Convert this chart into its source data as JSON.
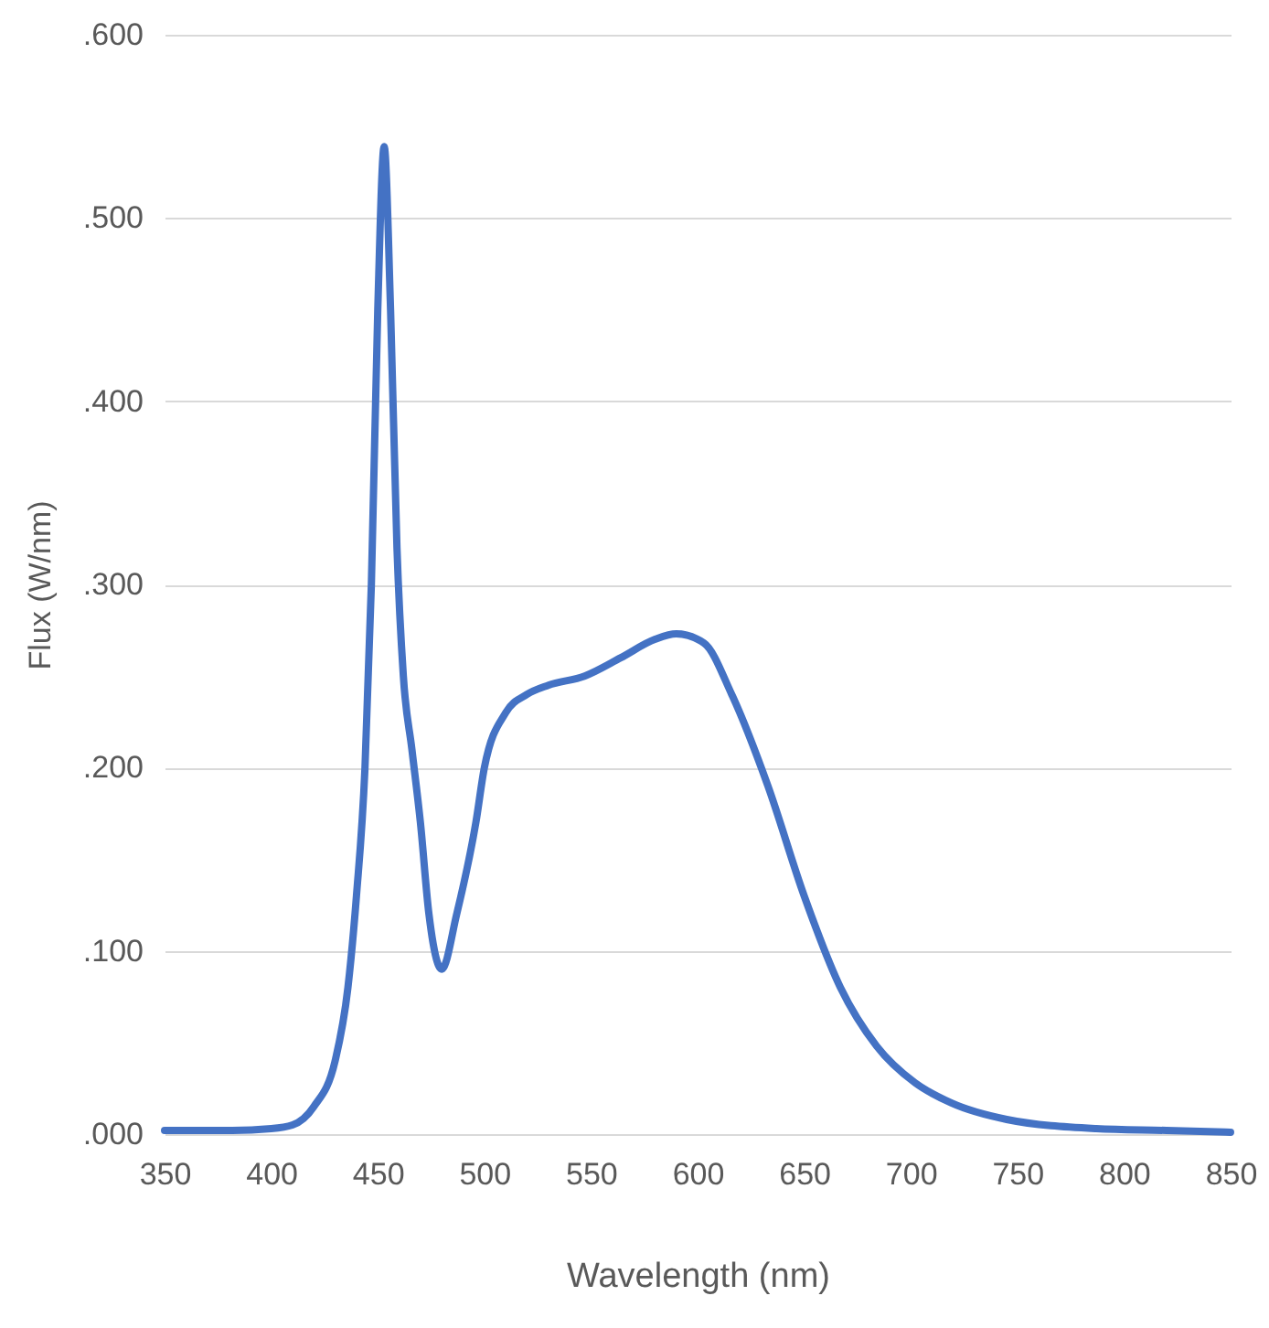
{
  "chart_data": {
    "type": "line",
    "xlabel": "Wavelength (nm)",
    "ylabel": "Flux (W/nm)",
    "x": [
      350,
      380,
      400,
      410,
      420,
      430,
      436,
      440,
      444,
      447,
      450,
      453,
      456,
      459,
      462,
      466,
      470,
      474,
      480,
      487,
      496,
      500,
      510,
      520,
      530,
      547,
      564,
      580,
      590,
      603,
      616,
      633,
      650,
      667,
      684,
      702,
      719,
      745,
      787,
      820,
      850
    ],
    "series": [
      {
        "color": "#4472c4",
        "values": [
          0.002,
          0.002,
          0.003,
          0.005,
          0.015,
          0.04,
          0.08,
          0.13,
          0.2,
          0.3,
          0.45,
          0.539,
          0.45,
          0.32,
          0.25,
          0.21,
          0.17,
          0.12,
          0.09,
          0.12,
          0.17,
          0.2,
          0.23,
          0.24,
          0.245,
          0.25,
          0.26,
          0.27,
          0.273,
          0.268,
          0.24,
          0.19,
          0.13,
          0.08,
          0.048,
          0.028,
          0.017,
          0.008,
          0.003,
          0.002,
          0.001
        ]
      }
    ],
    "xlim": [
      350,
      850
    ],
    "xticks": [
      350,
      400,
      450,
      500,
      550,
      600,
      650,
      700,
      750,
      800,
      850
    ],
    "ylim": [
      0,
      0.6
    ],
    "yticks": [
      {
        "value": 0,
        "label": ".000"
      },
      {
        "value": 0.1,
        "label": ".100"
      },
      {
        "value": 0.2,
        "label": ".200"
      },
      {
        "value": 0.3,
        "label": ".300"
      },
      {
        "value": 0.4,
        "label": ".400"
      },
      {
        "value": 0.5,
        "label": ".500"
      },
      {
        "value": 0.6,
        "label": ".600"
      }
    ],
    "grid": "y",
    "line_style": "solid",
    "marker": "none"
  }
}
